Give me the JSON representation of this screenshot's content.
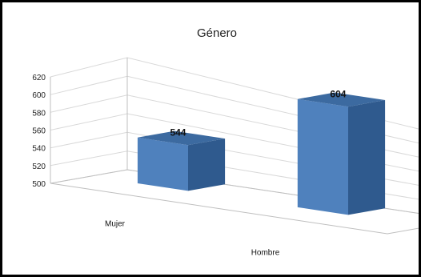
{
  "chart_data": {
    "type": "bar",
    "title": "Género",
    "categories": [
      "Mujer",
      "Hombre"
    ],
    "values": [
      544,
      604
    ],
    "data_labels": [
      "544",
      "604"
    ],
    "ylim": [
      500,
      620
    ],
    "yticks": [
      "500",
      "520",
      "540",
      "560",
      "580",
      "600",
      "620"
    ],
    "grid": true,
    "style": "3d-column",
    "colors": {
      "front": "#4f81bd",
      "side": "#2f5a8e",
      "top": "#3c6aa0",
      "grid": "#d9d9d9",
      "axis": "#bfbfbf"
    }
  }
}
